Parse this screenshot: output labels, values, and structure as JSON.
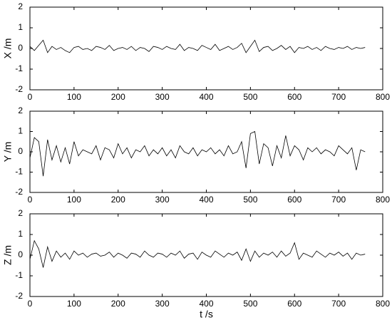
{
  "chart_data": [
    {
      "type": "line",
      "ylabel": "X /m",
      "color": "#000000",
      "x": [
        0,
        10,
        20,
        30,
        40,
        50,
        60,
        70,
        80,
        90,
        100,
        110,
        120,
        130,
        140,
        150,
        160,
        170,
        180,
        190,
        200,
        210,
        220,
        230,
        240,
        250,
        260,
        270,
        280,
        290,
        300,
        310,
        320,
        330,
        340,
        350,
        360,
        370,
        380,
        390,
        400,
        410,
        420,
        430,
        440,
        450,
        460,
        470,
        480,
        490,
        500,
        510,
        520,
        530,
        540,
        550,
        560,
        570,
        580,
        590,
        600,
        610,
        620,
        630,
        640,
        650,
        660,
        670,
        680,
        690,
        700,
        710,
        720,
        730,
        740,
        750,
        760
      ],
      "values": [
        0.1,
        -0.1,
        0.15,
        0.4,
        -0.2,
        0.1,
        -0.05,
        0.05,
        -0.1,
        -0.2,
        0.05,
        0.1,
        -0.05,
        0.0,
        -0.1,
        0.1,
        0.05,
        -0.05,
        0.15,
        -0.1,
        0.0,
        0.05,
        -0.05,
        0.1,
        -0.1,
        0.05,
        0.0,
        -0.15,
        0.1,
        0.05,
        -0.05,
        0.1,
        0.0,
        -0.05,
        0.2,
        -0.1,
        0.05,
        0.0,
        -0.1,
        0.15,
        0.05,
        -0.05,
        0.2,
        -0.1,
        0.0,
        0.1,
        -0.05,
        0.05,
        0.25,
        -0.2,
        0.1,
        0.4,
        -0.15,
        0.05,
        0.1,
        -0.1,
        0.0,
        0.15,
        -0.05,
        0.1,
        -0.2,
        0.05,
        0.0,
        0.1,
        -0.05,
        0.05,
        -0.1,
        0.1,
        0.0,
        -0.05,
        0.05,
        0.0,
        0.1,
        -0.05,
        0.05,
        0.0,
        0.05
      ],
      "xlim": [
        0,
        800
      ],
      "xticks": [
        0,
        100,
        200,
        300,
        400,
        500,
        600,
        700,
        800
      ],
      "ylim": [
        -2,
        2
      ],
      "yticks": [
        -2,
        -1,
        0,
        1,
        2
      ]
    },
    {
      "type": "line",
      "ylabel": "Y /m",
      "color": "#000000",
      "x": [
        0,
        10,
        20,
        30,
        40,
        50,
        60,
        70,
        80,
        90,
        100,
        110,
        120,
        130,
        140,
        150,
        160,
        170,
        180,
        190,
        200,
        210,
        220,
        230,
        240,
        250,
        260,
        270,
        280,
        290,
        300,
        310,
        320,
        330,
        340,
        350,
        360,
        370,
        380,
        390,
        400,
        410,
        420,
        430,
        440,
        450,
        460,
        470,
        480,
        490,
        500,
        510,
        520,
        530,
        540,
        550,
        560,
        570,
        580,
        590,
        600,
        610,
        620,
        630,
        640,
        650,
        660,
        670,
        680,
        690,
        700,
        710,
        720,
        730,
        740,
        750,
        760
      ],
      "values": [
        -0.3,
        0.7,
        0.5,
        -1.2,
        0.6,
        -0.4,
        0.3,
        -0.5,
        0.2,
        -0.6,
        0.5,
        -0.2,
        0.1,
        0.0,
        -0.1,
        0.3,
        -0.4,
        0.2,
        0.1,
        -0.3,
        0.4,
        -0.1,
        0.2,
        -0.3,
        0.1,
        0.0,
        0.3,
        -0.2,
        0.1,
        -0.1,
        0.2,
        -0.2,
        0.1,
        -0.3,
        0.3,
        0.0,
        -0.1,
        0.2,
        -0.2,
        0.1,
        0.0,
        0.2,
        -0.1,
        0.1,
        -0.2,
        0.3,
        -0.1,
        0.0,
        0.5,
        -0.8,
        0.9,
        1.0,
        -0.6,
        0.4,
        0.2,
        -0.7,
        0.3,
        -0.3,
        0.8,
        -0.2,
        0.3,
        0.1,
        -0.4,
        0.2,
        0.0,
        0.2,
        -0.1,
        0.1,
        0.0,
        -0.2,
        0.3,
        0.1,
        -0.1,
        0.2,
        -0.9,
        0.1,
        0.0
      ],
      "xlim": [
        0,
        800
      ],
      "xticks": [
        0,
        100,
        200,
        300,
        400,
        500,
        600,
        700,
        800
      ],
      "ylim": [
        -2,
        2
      ],
      "yticks": [
        -2,
        -1,
        0,
        1,
        2
      ]
    },
    {
      "type": "line",
      "ylabel": "Z /m",
      "xlabel": "t /s",
      "color": "#000000",
      "x": [
        0,
        10,
        20,
        30,
        40,
        50,
        60,
        70,
        80,
        90,
        100,
        110,
        120,
        130,
        140,
        150,
        160,
        170,
        180,
        190,
        200,
        210,
        220,
        230,
        240,
        250,
        260,
        270,
        280,
        290,
        300,
        310,
        320,
        330,
        340,
        350,
        360,
        370,
        380,
        390,
        400,
        410,
        420,
        430,
        440,
        450,
        460,
        470,
        480,
        490,
        500,
        510,
        520,
        530,
        540,
        550,
        560,
        570,
        580,
        590,
        600,
        610,
        620,
        630,
        640,
        650,
        660,
        670,
        680,
        690,
        700,
        710,
        720,
        730,
        740,
        750,
        760
      ],
      "values": [
        -0.2,
        0.7,
        0.3,
        -0.6,
        0.4,
        -0.3,
        0.2,
        -0.1,
        0.1,
        -0.2,
        0.2,
        0.0,
        0.1,
        -0.1,
        0.05,
        0.1,
        -0.05,
        0.0,
        0.15,
        -0.1,
        0.1,
        0.0,
        -0.15,
        0.1,
        0.05,
        -0.1,
        0.2,
        0.0,
        -0.1,
        0.1,
        0.05,
        -0.1,
        0.1,
        0.0,
        0.2,
        -0.15,
        0.05,
        0.1,
        -0.2,
        0.15,
        0.0,
        -0.1,
        0.2,
        0.05,
        -0.1,
        0.1,
        0.0,
        0.15,
        -0.25,
        0.3,
        -0.3,
        0.2,
        -0.1,
        0.1,
        0.0,
        0.15,
        -0.1,
        0.2,
        -0.05,
        0.1,
        0.6,
        -0.2,
        0.1,
        0.0,
        -0.1,
        0.2,
        0.05,
        -0.1,
        0.1,
        0.0,
        0.15,
        -0.05,
        0.1,
        -0.2,
        0.1,
        0.0,
        0.05
      ],
      "xlim": [
        0,
        800
      ],
      "xticks": [
        0,
        100,
        200,
        300,
        400,
        500,
        600,
        700,
        800
      ],
      "ylim": [
        -2,
        2
      ],
      "yticks": [
        -2,
        -1,
        0,
        1,
        2
      ]
    }
  ]
}
